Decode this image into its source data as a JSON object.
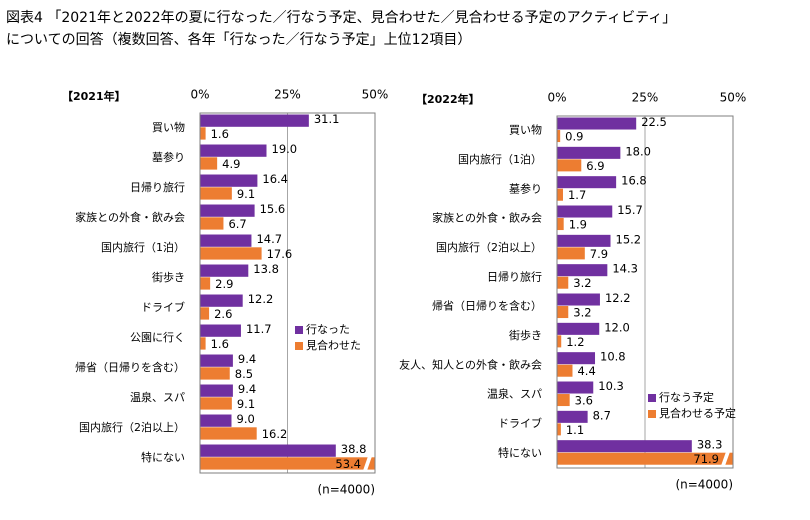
{
  "title": [
    "図表4 「2021年と2022年の夏に行なった／行なう予定、見合わせた／見合わせる予定のアクティビティ」",
    "についての回答（複数回答、各年「行なった／行なう予定」上位12項目）"
  ],
  "chart_data": [
    {
      "type": "bar",
      "orientation": "horizontal",
      "label": "【2021年】",
      "note": "(n=4000)",
      "categories": [
        "買い物",
        "墓参り",
        "日帰り旅行",
        "家族との外食・飲み会",
        "国内旅行（1泊）",
        "街歩き",
        "ドライブ",
        "公園に行く",
        "帰省（日帰りを含む）",
        "温泉、スパ",
        "国内旅行（2泊以上）",
        "特にない"
      ],
      "series": [
        {
          "name": "行なった",
          "color": "#7030a0",
          "values": [
            31.1,
            19,
            16.4,
            15.6,
            14.7,
            13.8,
            12.2,
            11.7,
            9.4,
            9.4,
            9,
            38.8
          ],
          "value_labels": [
            "31.1",
            "19.0",
            "16.4",
            "15.6",
            "14.7",
            "13.8",
            "12.2",
            "11.7",
            "9.4",
            "9.4",
            "9.0",
            "38.8"
          ]
        },
        {
          "name": "見合わせた",
          "color": "#ed7d31",
          "values": [
            1.6,
            4.9,
            9.1,
            6.7,
            17.6,
            2.9,
            2.6,
            1.6,
            8.5,
            9.1,
            16.2,
            53.4
          ],
          "value_labels": [
            "1.6",
            "4.9",
            "9.1",
            "6.7",
            "17.6",
            "2.9",
            "2.6",
            "1.6",
            "8.5",
            "9.1",
            "16.2",
            "53.4"
          ]
        }
      ],
      "xlim": [
        0,
        50
      ],
      "xticks": [
        {
          "value": 0,
          "label": "0%"
        },
        {
          "value": 25,
          "label": "25%"
        },
        {
          "value": 50,
          "label": "50%"
        }
      ],
      "grid": true
    },
    {
      "type": "bar",
      "orientation": "horizontal",
      "label": "【2022年】",
      "note": "(n=4000)",
      "categories": [
        "買い物",
        "国内旅行（1泊）",
        "墓参り",
        "家族との外食・飲み会",
        "国内旅行（2泊以上）",
        "日帰り旅行",
        "帰省（日帰りを含む）",
        "街歩き",
        "友人、知人との外食・飲み会",
        "温泉、スパ",
        "ドライブ",
        "特にない"
      ],
      "series": [
        {
          "name": "行なう予定",
          "color": "#7030a0",
          "values": [
            22.5,
            18,
            16.8,
            15.7,
            15.2,
            14.3,
            12.2,
            12,
            10.8,
            10.3,
            8.7,
            38.3
          ],
          "value_labels": [
            "22.5",
            "18.0",
            "16.8",
            "15.7",
            "15.2",
            "14.3",
            "12.2",
            "12.0",
            "10.8",
            "10.3",
            "8.7",
            "38.3"
          ]
        },
        {
          "name": "見合わせる予定",
          "color": "#ed7d31",
          "values": [
            0.9,
            6.9,
            1.7,
            1.9,
            7.9,
            3.2,
            3.2,
            1.2,
            4.4,
            3.6,
            1.1,
            71.9
          ],
          "value_labels": [
            "0.9",
            "6.9",
            "1.7",
            "1.9",
            "7.9",
            "3.2",
            "3.2",
            "1.2",
            "4.4",
            "3.6",
            "1.1",
            "71.9"
          ]
        }
      ],
      "xlim": [
        0,
        50
      ],
      "xticks": [
        {
          "value": 0,
          "label": "0%"
        },
        {
          "value": 25,
          "label": "25%"
        },
        {
          "value": 50,
          "label": "50%"
        }
      ],
      "grid": true
    }
  ]
}
